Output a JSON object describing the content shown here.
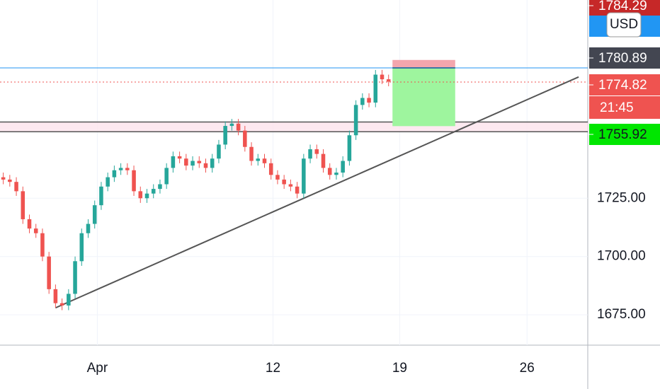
{
  "chart_data": {
    "type": "candlestick",
    "open": [
      1734,
      1733,
      1732,
      1728,
      1716,
      1712,
      1710,
      1700,
      1686,
      1680,
      1679,
      1684,
      1698,
      1710,
      1714,
      1722,
      1730,
      1734,
      1737,
      1738,
      1737,
      1728,
      1725,
      1727,
      1729,
      1731,
      1738,
      1743,
      1742,
      1739,
      1741,
      1740,
      1738,
      1742,
      1748,
      1756,
      1757,
      1754,
      1747,
      1741,
      1742,
      1740,
      1735,
      1733,
      1731,
      1730,
      1727,
      1742,
      1746,
      1744,
      1738,
      1735,
      1736,
      1741,
      1752,
      1765,
      1768,
      1766,
      1778,
      1776
    ],
    "high": [
      1736,
      1735,
      1734,
      1730,
      1718,
      1714,
      1712,
      1702,
      1688,
      1682,
      1686,
      1700,
      1712,
      1716,
      1724,
      1732,
      1736,
      1739,
      1740,
      1740,
      1739,
      1730,
      1729,
      1731,
      1733,
      1740,
      1745,
      1745,
      1744,
      1743,
      1743,
      1742,
      1744,
      1750,
      1758,
      1759,
      1759,
      1756,
      1749,
      1744,
      1744,
      1742,
      1737,
      1735,
      1733,
      1732,
      1744,
      1748,
      1748,
      1746,
      1740,
      1738,
      1743,
      1754,
      1767,
      1770,
      1770,
      1780,
      1780,
      1778
    ],
    "low": [
      1731,
      1730,
      1726,
      1714,
      1710,
      1708,
      1698,
      1684,
      1678,
      1677,
      1677,
      1682,
      1696,
      1708,
      1712,
      1720,
      1728,
      1732,
      1735,
      1735,
      1726,
      1723,
      1723,
      1725,
      1727,
      1729,
      1736,
      1740,
      1737,
      1737,
      1738,
      1736,
      1736,
      1740,
      1746,
      1754,
      1752,
      1745,
      1739,
      1739,
      1738,
      1733,
      1731,
      1729,
      1728,
      1725,
      1725,
      1740,
      1742,
      1736,
      1733,
      1733,
      1734,
      1739,
      1750,
      1763,
      1764,
      1764,
      1774,
      1773
    ],
    "close": [
      1733,
      1732,
      1728,
      1716,
      1712,
      1710,
      1700,
      1686,
      1680,
      1679,
      1684,
      1698,
      1710,
      1714,
      1722,
      1730,
      1734,
      1737,
      1738,
      1737,
      1728,
      1725,
      1727,
      1729,
      1731,
      1738,
      1743,
      1742,
      1739,
      1741,
      1740,
      1738,
      1742,
      1748,
      1756,
      1757,
      1754,
      1747,
      1741,
      1742,
      1740,
      1735,
      1733,
      1731,
      1730,
      1727,
      1742,
      1746,
      1744,
      1738,
      1735,
      1736,
      1741,
      1752,
      1765,
      1768,
      1766,
      1778,
      1776,
      1775
    ],
    "up_color": "#26a69a",
    "down_color": "#ef5350",
    "xlim": [
      0,
      90
    ],
    "xticks": [
      {
        "value": 14.9,
        "label": "Apr"
      },
      {
        "value": 41.8,
        "label": "12"
      },
      {
        "value": 61.2,
        "label": "19"
      },
      {
        "value": 80.7,
        "label": "26"
      }
    ],
    "ylim": [
      1662,
      1810
    ],
    "yticks": [
      {
        "value": 1675,
        "label": "1675.00"
      },
      {
        "value": 1700,
        "label": "1700.00"
      },
      {
        "value": 1725,
        "label": "1725.00"
      }
    ],
    "grid": true,
    "trendline": {
      "x": [
        8.5,
        88.6
      ],
      "y": [
        1678,
        1777
      ]
    },
    "zone": [
      1753.5,
      1757.7
    ],
    "position": {
      "x": [
        60.1,
        69.7
      ],
      "stop": 1784.29,
      "entry": 1780.89,
      "target": 1755.92
    },
    "price_labels": [
      {
        "value": 1784.29,
        "label": "1784.29",
        "color": "#c62828"
      },
      {
        "value": 1780.89,
        "label": "1780.89",
        "color": "#434651"
      },
      {
        "value": 1774.82,
        "label": "1774.82",
        "color": "#ef5350"
      },
      {
        "value": 1755.92,
        "label": "1755.92",
        "color": "#00e600"
      }
    ],
    "countdown": "21:45",
    "currency": "USD"
  }
}
